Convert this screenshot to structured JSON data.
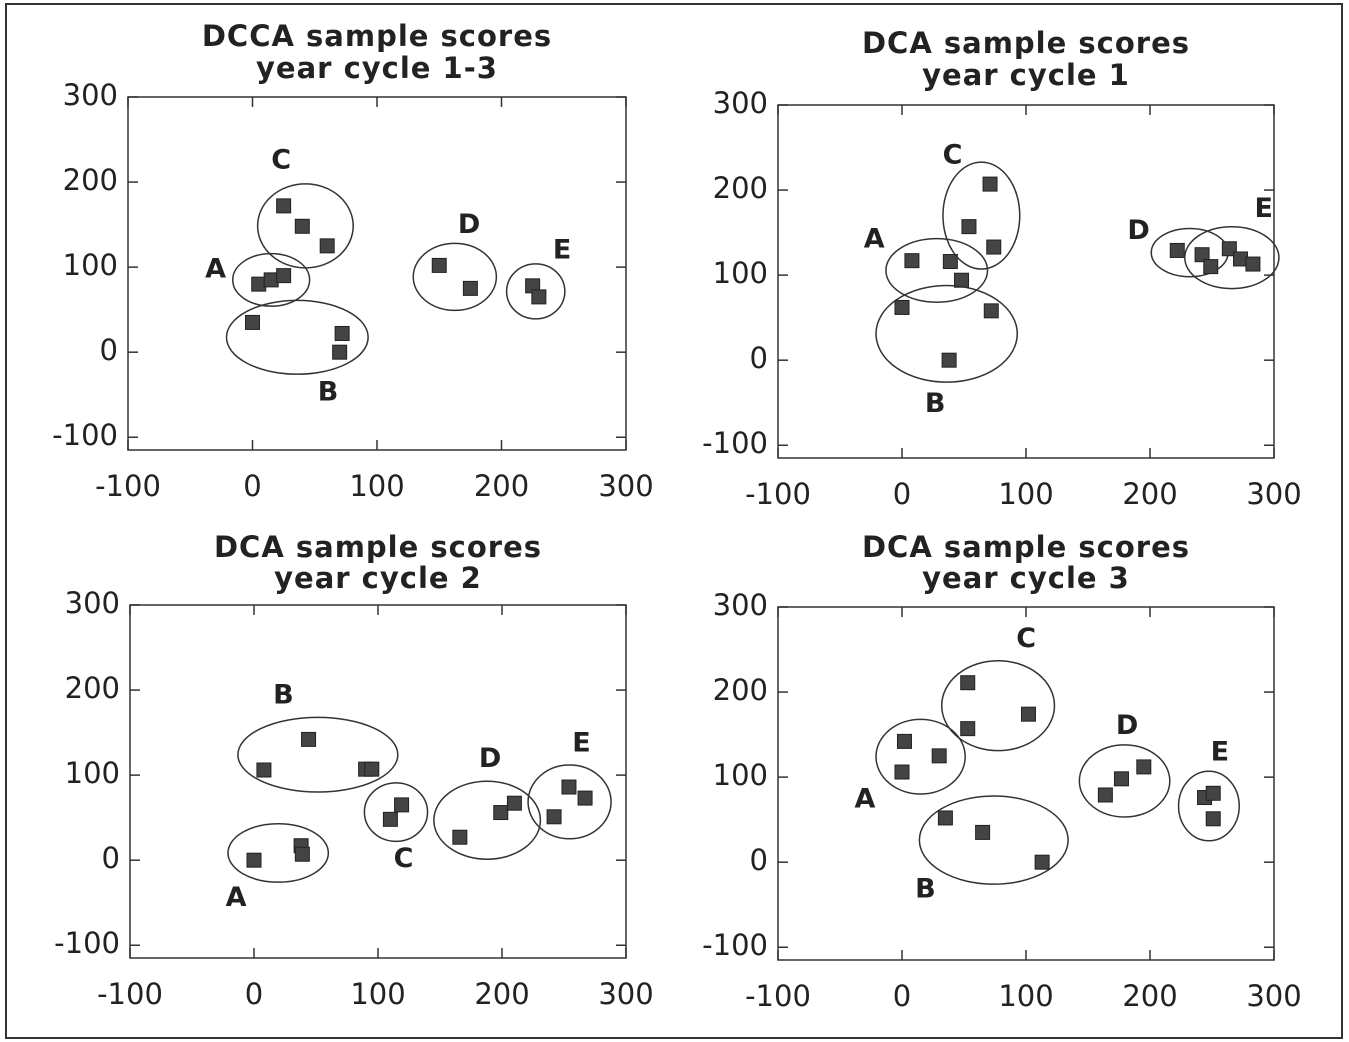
{
  "chart_data": [
    {
      "type": "scatter",
      "title": "DCCA sample scores",
      "subtitle": "year cycle 1-3",
      "xlim": [
        -100,
        300
      ],
      "ylim": [
        -115,
        300
      ],
      "xticks": [
        -100,
        0,
        100,
        200,
        300
      ],
      "yticks": [
        -100,
        0,
        100,
        200,
        300
      ],
      "grid": false,
      "series": [
        {
          "name": "A",
          "color": "#444444",
          "x": [
            5,
            15,
            25
          ],
          "y": [
            80,
            85,
            90
          ]
        },
        {
          "name": "B",
          "color": "#444444",
          "x": [
            0,
            72,
            70
          ],
          "y": [
            35,
            22,
            0
          ]
        },
        {
          "name": "C",
          "color": "#444444",
          "x": [
            25,
            40,
            60
          ],
          "y": [
            172,
            148,
            125
          ]
        },
        {
          "name": "D",
          "color": "#444444",
          "x": [
            150,
            175
          ],
          "y": [
            102,
            75
          ]
        },
        {
          "name": "E",
          "color": "#444444",
          "x": [
            225,
            230
          ],
          "y": [
            78,
            65
          ]
        }
      ]
    },
    {
      "type": "scatter",
      "title": "DCA sample scores",
      "subtitle": "year cycle 1",
      "xlim": [
        -100,
        300
      ],
      "ylim": [
        -115,
        300
      ],
      "xticks": [
        -100,
        0,
        100,
        200,
        300
      ],
      "yticks": [
        -100,
        0,
        100,
        200,
        300
      ],
      "grid": false,
      "series": [
        {
          "name": "A",
          "color": "#444444",
          "x": [
            8,
            39,
            48
          ],
          "y": [
            117,
            116,
            94
          ]
        },
        {
          "name": "B",
          "color": "#444444",
          "x": [
            0,
            38,
            72
          ],
          "y": [
            62,
            0,
            58
          ]
        },
        {
          "name": "C",
          "color": "#444444",
          "x": [
            71,
            54,
            74
          ],
          "y": [
            207,
            157,
            133
          ]
        },
        {
          "name": "D",
          "color": "#444444",
          "x": [
            222,
            242
          ],
          "y": [
            129,
            124
          ]
        },
        {
          "name": "E",
          "color": "#444444",
          "x": [
            249,
            264,
            273,
            283
          ],
          "y": [
            110,
            131,
            119,
            113
          ]
        }
      ]
    },
    {
      "type": "scatter",
      "title": "DCA sample scores",
      "subtitle": "year cycle 2",
      "xlim": [
        -100,
        300
      ],
      "ylim": [
        -115,
        300
      ],
      "xticks": [
        -100,
        0,
        100,
        200,
        300
      ],
      "yticks": [
        -100,
        0,
        100,
        200,
        300
      ],
      "grid": false,
      "series": [
        {
          "name": "A",
          "color": "#444444",
          "x": [
            0,
            38,
            39
          ],
          "y": [
            0,
            17,
            7
          ]
        },
        {
          "name": "B",
          "color": "#444444",
          "x": [
            8,
            44,
            90,
            95
          ],
          "y": [
            106,
            142,
            107,
            107
          ]
        },
        {
          "name": "C",
          "color": "#444444",
          "x": [
            110,
            119
          ],
          "y": [
            48,
            65
          ]
        },
        {
          "name": "D",
          "color": "#444444",
          "x": [
            166,
            199,
            210
          ],
          "y": [
            27,
            56,
            67
          ]
        },
        {
          "name": "E",
          "color": "#444444",
          "x": [
            242,
            254,
            267
          ],
          "y": [
            51,
            86,
            73
          ]
        }
      ]
    },
    {
      "type": "scatter",
      "title": "DCA sample scores",
      "subtitle": "year cycle 3",
      "xlim": [
        -100,
        300
      ],
      "ylim": [
        -115,
        300
      ],
      "xticks": [
        -100,
        0,
        100,
        200,
        300
      ],
      "yticks": [
        -100,
        0,
        100,
        200,
        300
      ],
      "grid": false,
      "series": [
        {
          "name": "A",
          "color": "#444444",
          "x": [
            0,
            2,
            30
          ],
          "y": [
            106,
            142,
            125
          ]
        },
        {
          "name": "B",
          "color": "#444444",
          "x": [
            35,
            65,
            113
          ],
          "y": [
            52,
            35,
            0
          ]
        },
        {
          "name": "C",
          "color": "#444444",
          "x": [
            53,
            53,
            102
          ],
          "y": [
            211,
            157,
            174
          ]
        },
        {
          "name": "D",
          "color": "#444444",
          "x": [
            164,
            177,
            195
          ],
          "y": [
            79,
            98,
            112
          ]
        },
        {
          "name": "E",
          "color": "#444444",
          "x": [
            244,
            251,
            251
          ],
          "y": [
            76,
            81,
            51
          ]
        }
      ]
    }
  ]
}
